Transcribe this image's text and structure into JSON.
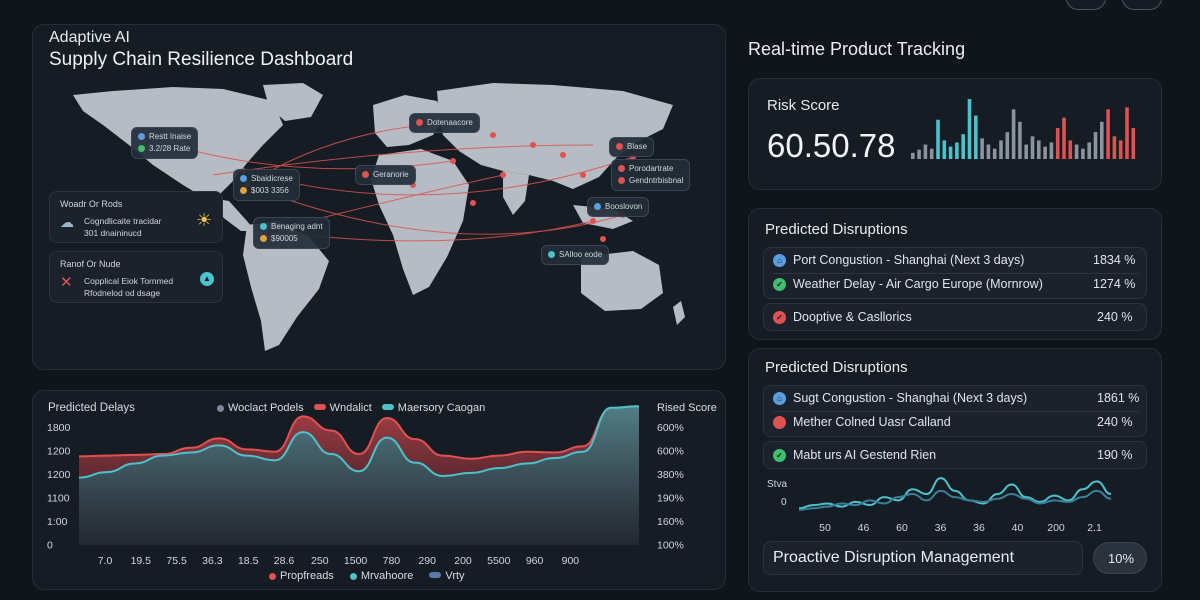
{
  "map_panel": {
    "title_line1": "Adaptive AI",
    "title_line2": "Supply Chain Resilience Dashboard",
    "tags": [
      {
        "l1": "Restt Inaise",
        "l2": "3.2/28 Rate"
      },
      {
        "l1": "Dotenaacore",
        "l2": ""
      },
      {
        "l1": "Sbaidicrese",
        "l2": "$003 3356"
      },
      {
        "l1": "Geranorie",
        "l2": ""
      },
      {
        "l1": "Benaging adnt",
        "l2": "$90005"
      },
      {
        "l1": "Blase",
        "l2": ""
      },
      {
        "l1": "Porodartrate",
        "l2": "Gendntrbisbnal"
      },
      {
        "l1": "Booslovon",
        "l2": ""
      },
      {
        "l1": "SAlloo eode",
        "l2": ""
      }
    ],
    "weather_card": {
      "title": "Woadr Or Rods",
      "l1": "Cogndlicaite tracidar",
      "l2": "301 dnaininucd"
    },
    "risk_card": {
      "title": "Ranof Or Nude",
      "l1": "Copplical Eiok Tornmed",
      "l2": "Rfodnelod od dsage"
    }
  },
  "delays_chart": {
    "title": "Predicted Delays",
    "right_title": "Rised Score",
    "legend_top": [
      "Woclact Podels",
      "Wndalict",
      "Maersory Caogan"
    ],
    "legend_bottom": [
      "Propfreads",
      "Mrvahoore",
      "Vrty"
    ]
  },
  "tracking": {
    "title": "Real-time Product Tracking",
    "risk_label": "Risk Score",
    "risk_value": "60.50.78"
  },
  "disruptions_1": {
    "title": "Predicted Disruptions",
    "items": [
      {
        "label": "Port Congustion - Shanghai (Next 3 days)",
        "value": "1834 %"
      },
      {
        "label": "Weather Delay - Air Cargo Europe (Mornrow)",
        "value": "1274 %"
      },
      {
        "label": "Dooptive & Casllorics",
        "value": "240 %"
      }
    ]
  },
  "disruptions_2": {
    "title": "Predicted Disruptions",
    "items": [
      {
        "label": "Sugt Congustion - Shanghai (Next 3 days)",
        "value": "1861 %"
      },
      {
        "label": "Mether Colned Uasr Calland",
        "value": "240 %"
      },
      {
        "label": "Mabt urs AI Gestend Rien",
        "value": "190 %"
      }
    ],
    "mini_label": "Stva",
    "mini_zero": "0"
  },
  "proactive": {
    "label": "Proactive Disruption Management",
    "value": "10%"
  },
  "colors": {
    "red": "#e05252",
    "teal": "#4cc2cc",
    "green": "#3fbf6f",
    "blue": "#5a9fe0",
    "grey": "#7f8a98"
  },
  "chart_data": [
    {
      "type": "area",
      "title": "Predicted Delays",
      "y_left_ticks": [
        "1800",
        "1200",
        "1200",
        "1100",
        "1:00",
        "0"
      ],
      "y_right_ticks": [
        "600%",
        "600%",
        "380%",
        "190%",
        "160%",
        "100%"
      ],
      "x_ticks": [
        "7.0",
        "19.5",
        "75.5",
        "36.3",
        "18.5",
        "28.6",
        "250",
        "1500",
        "780",
        "290",
        "200",
        "5500",
        "960",
        "900"
      ],
      "series": [
        {
          "name": "Wndalict",
          "values": [
            1130,
            1140,
            1150,
            1160,
            1240,
            1360,
            1220,
            1190,
            1640,
            1460,
            1160,
            1620,
            1350,
            1140,
            1100,
            1140,
            1190,
            1180,
            1260,
            1740,
            1760
          ]
        },
        {
          "name": "Maersory Caogan",
          "values": [
            860,
            930,
            1040,
            1140,
            1180,
            1270,
            1140,
            1080,
            1440,
            1160,
            940,
            1370,
            1050,
            880,
            920,
            980,
            1040,
            1110,
            1190,
            1750,
            1770
          ]
        }
      ]
    },
    {
      "type": "bar",
      "title": "Risk Score",
      "values": [
        6,
        9,
        14,
        10,
        38,
        18,
        12,
        16,
        24,
        58,
        42,
        20,
        14,
        10,
        18,
        26,
        48,
        36,
        14,
        22,
        18,
        12,
        16,
        30,
        40,
        18,
        14,
        10,
        16,
        26,
        36,
        48,
        22,
        18,
        50,
        30
      ]
    },
    {
      "type": "line",
      "title": "Stva",
      "x_ticks": [
        "50",
        "46",
        "60",
        "36",
        "36",
        "40",
        "200",
        "2.1"
      ],
      "series": [
        {
          "name": "",
          "values": [
            3,
            5,
            6,
            4,
            7,
            5,
            10,
            8,
            15,
            12,
            22,
            14,
            8,
            6,
            12,
            18,
            10,
            7,
            11,
            8,
            15,
            20,
            12
          ]
        },
        {
          "name": "",
          "values": [
            2,
            3,
            4,
            6,
            5,
            8,
            6,
            10,
            12,
            8,
            14,
            10,
            8,
            7,
            9,
            12,
            9,
            6,
            8,
            7,
            10,
            14,
            9
          ]
        }
      ]
    }
  ]
}
